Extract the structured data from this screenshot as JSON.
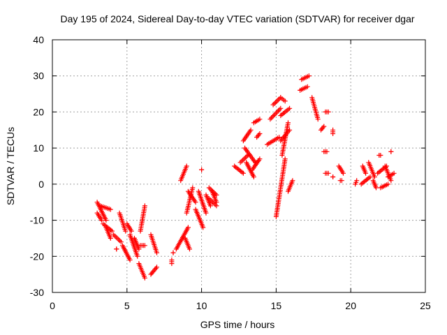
{
  "chart_data": {
    "type": "scatter",
    "title": "Day 195 of 2024, Sidereal Day-to-day VTEC variation (SDTVAR) for receiver dgar",
    "xlabel": "GPS time / hours",
    "ylabel": "SDTVAR / TECUs",
    "xlim": [
      0,
      25
    ],
    "ylim": [
      -30,
      40
    ],
    "xticks": [
      0,
      5,
      10,
      15,
      20,
      25
    ],
    "yticks": [
      -30,
      -20,
      -10,
      0,
      10,
      20,
      30,
      40
    ],
    "grid": true,
    "marker": "plus",
    "color": "#ff0000",
    "segments": [
      {
        "x": [
          3.0,
          3.6
        ],
        "y": [
          -5,
          -10
        ]
      },
      {
        "x": [
          3.0,
          3.3
        ],
        "y": [
          -8,
          -10
        ]
      },
      {
        "x": [
          3.2,
          3.9
        ],
        "y": [
          -6,
          -7
        ]
      },
      {
        "x": [
          3.4,
          4.0
        ],
        "y": [
          -11,
          -13
        ]
      },
      {
        "x": [
          3.6,
          3.9
        ],
        "y": [
          -12,
          -15
        ]
      },
      {
        "x": [
          4.1,
          4.6
        ],
        "y": [
          -14,
          -16
        ]
      },
      {
        "x": [
          4.3,
          4.3
        ],
        "y": [
          -18,
          -18
        ]
      },
      {
        "x": [
          4.5,
          4.9
        ],
        "y": [
          -8,
          -13
        ]
      },
      {
        "x": [
          4.7,
          5.2
        ],
        "y": [
          -17,
          -21
        ]
      },
      {
        "x": [
          5.0,
          5.3
        ],
        "y": [
          -11,
          -13
        ]
      },
      {
        "x": [
          5.2,
          5.7
        ],
        "y": [
          -14,
          -20
        ]
      },
      {
        "x": [
          5.5,
          5.8
        ],
        "y": [
          -15,
          -18
        ]
      },
      {
        "x": [
          5.8,
          6.2
        ],
        "y": [
          -22,
          -26
        ]
      },
      {
        "x": [
          5.9,
          6.2
        ],
        "y": [
          -17,
          -17
        ]
      },
      {
        "x": [
          5.9,
          6.2
        ],
        "y": [
          -13,
          -6
        ]
      },
      {
        "x": [
          6.6,
          7.0
        ],
        "y": [
          -14,
          -19
        ]
      },
      {
        "x": [
          6.6,
          7.0
        ],
        "y": [
          -25,
          -23
        ]
      },
      {
        "x": [
          8.0,
          8.0
        ],
        "y": [
          -22,
          -21
        ]
      },
      {
        "x": [
          8.1,
          8.1
        ],
        "y": [
          -19,
          -19
        ]
      },
      {
        "x": [
          8.3,
          9.1
        ],
        "y": [
          -18,
          -12
        ]
      },
      {
        "x": [
          8.9,
          9.2
        ],
        "y": [
          -15,
          -18
        ]
      },
      {
        "x": [
          9.0,
          9.4
        ],
        "y": [
          -8,
          -1
        ]
      },
      {
        "x": [
          8.6,
          9.0
        ],
        "y": [
          1,
          5
        ]
      },
      {
        "x": [
          9.1,
          9.6
        ],
        "y": [
          -2,
          -5
        ]
      },
      {
        "x": [
          9.6,
          10.1
        ],
        "y": [
          -7,
          -12
        ]
      },
      {
        "x": [
          9.8,
          10.3
        ],
        "y": [
          -2,
          -8
        ]
      },
      {
        "x": [
          10.0,
          10.0
        ],
        "y": [
          4,
          4
        ]
      },
      {
        "x": [
          10.3,
          10.6
        ],
        "y": [
          -3,
          -6
        ]
      },
      {
        "x": [
          10.5,
          11.0
        ],
        "y": [
          -4,
          -6
        ]
      },
      {
        "x": [
          10.7,
          11.0
        ],
        "y": [
          -2,
          -5
        ]
      },
      {
        "x": [
          10.5,
          11.0
        ],
        "y": [
          -1,
          -3
        ]
      },
      {
        "x": [
          12.2,
          12.8
        ],
        "y": [
          5,
          3
        ]
      },
      {
        "x": [
          12.6,
          13.1
        ],
        "y": [
          6,
          8
        ]
      },
      {
        "x": [
          12.9,
          13.6
        ],
        "y": [
          10,
          6
        ]
      },
      {
        "x": [
          12.8,
          13.3
        ],
        "y": [
          12,
          15
        ]
      },
      {
        "x": [
          13.0,
          13.5
        ],
        "y": [
          6,
          2
        ]
      },
      {
        "x": [
          13.4,
          13.9
        ],
        "y": [
          4,
          7
        ]
      },
      {
        "x": [
          13.7,
          13.9
        ],
        "y": [
          13,
          14
        ]
      },
      {
        "x": [
          13.5,
          13.9
        ],
        "y": [
          17,
          18
        ]
      },
      {
        "x": [
          14.4,
          15.2
        ],
        "y": [
          11,
          13
        ]
      },
      {
        "x": [
          14.6,
          15.3
        ],
        "y": [
          18,
          21
        ]
      },
      {
        "x": [
          14.8,
          15.3
        ],
        "y": [
          22,
          24
        ]
      },
      {
        "x": [
          15.0,
          15.6
        ],
        "y": [
          -9,
          7
        ]
      },
      {
        "x": [
          15.4,
          15.8
        ],
        "y": [
          8,
          17
        ]
      },
      {
        "x": [
          15.3,
          15.9
        ],
        "y": [
          12,
          15
        ]
      },
      {
        "x": [
          15.3,
          15.9
        ],
        "y": [
          19,
          21
        ]
      },
      {
        "x": [
          15.3,
          15.6
        ],
        "y": [
          24,
          23
        ]
      },
      {
        "x": [
          15.8,
          16.1
        ],
        "y": [
          -2,
          1
        ]
      },
      {
        "x": [
          16.6,
          17.1
        ],
        "y": [
          26,
          27
        ]
      },
      {
        "x": [
          16.7,
          17.2
        ],
        "y": [
          29,
          30
        ]
      },
      {
        "x": [
          17.4,
          17.8
        ],
        "y": [
          24,
          18
        ]
      },
      {
        "x": [
          18.0,
          18.2
        ],
        "y": [
          15,
          16
        ]
      },
      {
        "x": [
          18.2,
          18.4
        ],
        "y": [
          9,
          9
        ]
      },
      {
        "x": [
          18.3,
          18.5
        ],
        "y": [
          20,
          20
        ]
      },
      {
        "x": [
          18.3,
          18.5
        ],
        "y": [
          3,
          3
        ]
      },
      {
        "x": [
          18.8,
          18.8
        ],
        "y": [
          2,
          2
        ]
      },
      {
        "x": [
          18.8,
          18.8
        ],
        "y": [
          15,
          14
        ]
      },
      {
        "x": [
          19.2,
          19.5
        ],
        "y": [
          5,
          3
        ]
      },
      {
        "x": [
          19.3,
          19.4
        ],
        "y": [
          1,
          1
        ]
      },
      {
        "x": [
          20.3,
          20.4
        ],
        "y": [
          0,
          1
        ]
      },
      {
        "x": [
          20.7,
          21.3
        ],
        "y": [
          0,
          2
        ]
      },
      {
        "x": [
          20.8,
          21.0
        ],
        "y": [
          5,
          3
        ]
      },
      {
        "x": [
          21.2,
          21.6
        ],
        "y": [
          6,
          2
        ]
      },
      {
        "x": [
          21.5,
          21.7
        ],
        "y": [
          1,
          -1
        ]
      },
      {
        "x": [
          21.9,
          22.0
        ],
        "y": [
          8,
          8
        ]
      },
      {
        "x": [
          21.8,
          22.4
        ],
        "y": [
          3,
          5
        ]
      },
      {
        "x": [
          22.0,
          22.5
        ],
        "y": [
          -1,
          0
        ]
      },
      {
        "x": [
          22.3,
          22.7
        ],
        "y": [
          5,
          1
        ]
      },
      {
        "x": [
          22.5,
          22.9
        ],
        "y": [
          2,
          3
        ]
      },
      {
        "x": [
          22.7,
          22.7
        ],
        "y": [
          9,
          9
        ]
      }
    ]
  }
}
